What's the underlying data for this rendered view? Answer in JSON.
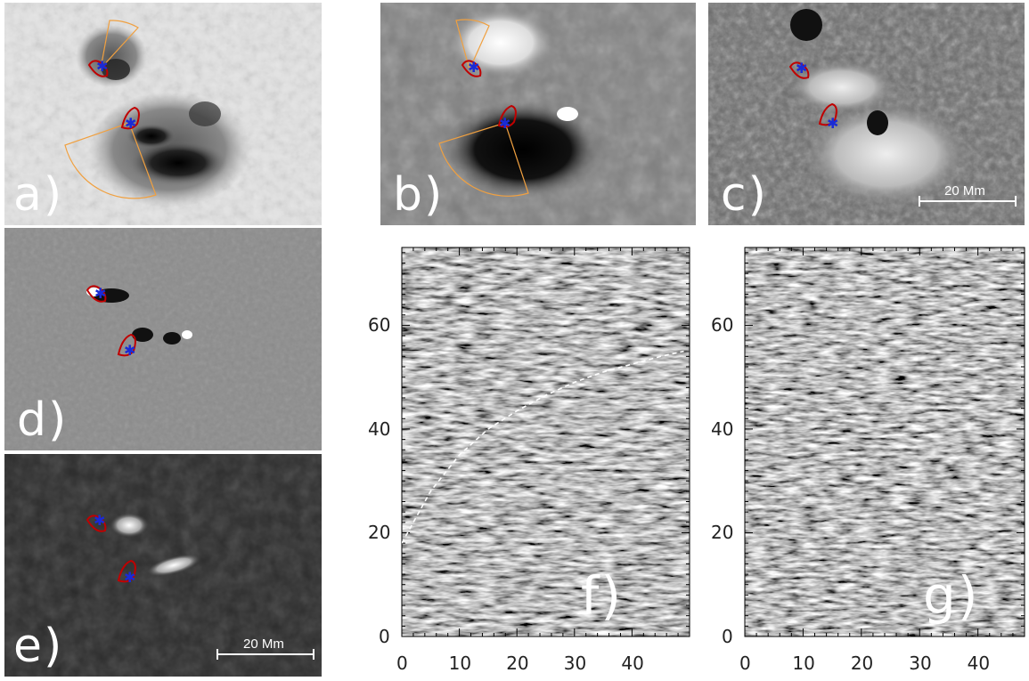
{
  "panels": {
    "a": {
      "label": "a)"
    },
    "b": {
      "label": "b)"
    },
    "c": {
      "label": "c)",
      "scale_label": "20 Mm"
    },
    "d": {
      "label": "d)"
    },
    "e": {
      "label": "e)",
      "scale_label": "20 Mm"
    },
    "f": {
      "label": "f)"
    },
    "g": {
      "label": "g)"
    }
  },
  "colors": {
    "contour": "#c00000",
    "marker": "#1a2bd6",
    "sector": "#f0a040"
  },
  "chart_data": [
    {
      "type": "heatmap",
      "panel": "f",
      "x_ticks": [
        0,
        10,
        20,
        30,
        40
      ],
      "y_ticks": [
        0,
        20,
        40,
        60
      ],
      "xlim": [
        0,
        50
      ],
      "ylim": [
        0,
        75
      ],
      "annotation": "dashed-curve",
      "curve_x": [
        0,
        5,
        10,
        15,
        20,
        25,
        30,
        35,
        40,
        45,
        49
      ],
      "curve_y": [
        18,
        28,
        35,
        40,
        43.5,
        46.5,
        49,
        51,
        52.5,
        54,
        55
      ]
    },
    {
      "type": "heatmap",
      "panel": "g",
      "x_ticks": [
        0,
        10,
        20,
        30,
        40
      ],
      "y_ticks": [
        0,
        20,
        40,
        60
      ],
      "xlim": [
        0,
        48
      ],
      "ylim": [
        0,
        75
      ]
    }
  ]
}
